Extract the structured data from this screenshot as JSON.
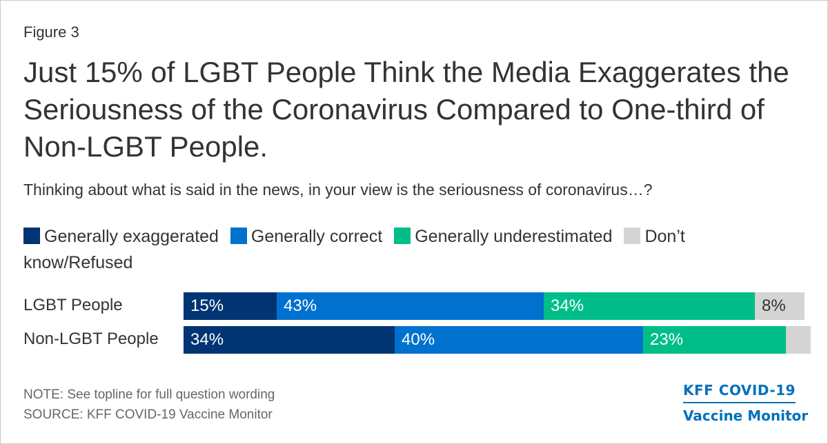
{
  "figure_label": "Figure 3",
  "source_block": {
    "note": "NOTE: See topline for full question wording",
    "source": "SOURCE: KFF COVID-19 Vaccine Monitor"
  },
  "logo": {
    "line1": "KFF COVID-19",
    "line2": "Vaccine Monitor"
  },
  "chart_data": {
    "type": "bar",
    "orientation": "horizontal",
    "stacked": true,
    "title": "Just 15% of LGBT People Think the Media Exaggerates the Seriousness of the Coronavirus Compared to One-third of Non-LGBT People.",
    "subtitle": "Thinking about what is said in the news, in your view is the seriousness of coronavirus…?",
    "categories": [
      "LGBT People",
      "Non-LGBT People"
    ],
    "series": [
      {
        "name": "Generally exaggerated",
        "color": "#003473",
        "values": [
          15,
          34
        ],
        "labels": [
          "15%",
          "34%"
        ]
      },
      {
        "name": "Generally correct",
        "color": "#0071ce",
        "values": [
          43,
          40
        ],
        "labels": [
          "43%",
          "40%"
        ]
      },
      {
        "name": "Generally underestimated",
        "color": "#00be89",
        "values": [
          34,
          23
        ],
        "labels": [
          "34%",
          "23%"
        ]
      },
      {
        "name": "Don’t know/Refused",
        "color": "#d4d4d4",
        "values": [
          8,
          4
        ],
        "labels": [
          "8%",
          ""
        ]
      }
    ],
    "xlim": [
      0,
      100
    ],
    "grid": false,
    "legend_position": "top"
  }
}
